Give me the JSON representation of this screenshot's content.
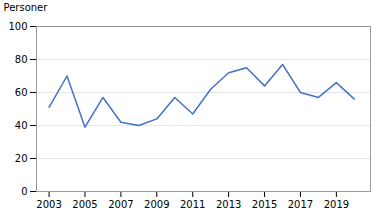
{
  "chart_data": {
    "type": "line",
    "x": [
      2003,
      2004,
      2005,
      2006,
      2007,
      2008,
      2009,
      2010,
      2011,
      2012,
      2013,
      2014,
      2015,
      2016,
      2017,
      2018,
      2019,
      2020
    ],
    "values": [
      51,
      70,
      39,
      57,
      42,
      40,
      44,
      57,
      47,
      62,
      72,
      75,
      64,
      77,
      60,
      57,
      66,
      56
    ],
    "color": "#4472C4",
    "ylabel": "Personer",
    "xlim": [
      2002.3,
      2020.9
    ],
    "xticks": [
      2003,
      2005,
      2007,
      2009,
      2011,
      2013,
      2015,
      2017,
      2019
    ],
    "ylim": [
      0,
      100
    ],
    "yticks": [
      0,
      20,
      40,
      60,
      80,
      100
    ],
    "grid": true
  }
}
